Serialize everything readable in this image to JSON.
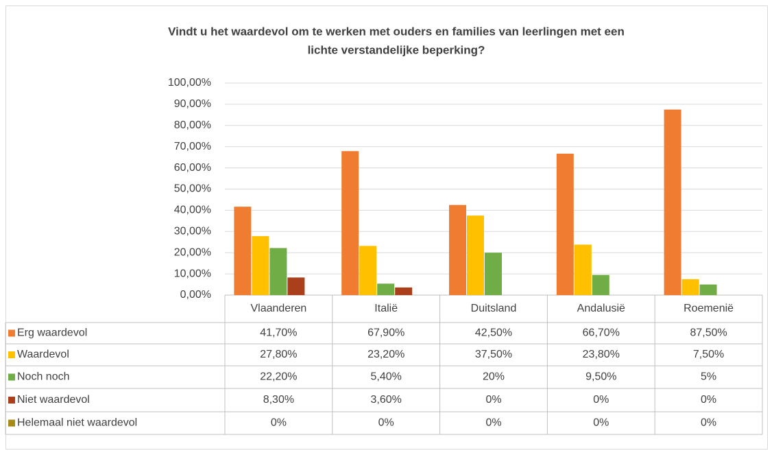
{
  "chart_data": {
    "type": "bar",
    "title": [
      "Vindt u het waardevol om te werken met ouders en families van leerlingen met een",
      "lichte verstandelijke beperking?"
    ],
    "categories": [
      "Vlaanderen",
      "Italië",
      "Duitsland",
      "Andalusië",
      "Roemenië"
    ],
    "series": [
      {
        "name": "Erg waardevol",
        "color": "#f07c32",
        "values": [
          41.7,
          67.9,
          42.5,
          66.7,
          87.5
        ],
        "value_labels": [
          "41,70%",
          "67,90%",
          "42,50%",
          "66,70%",
          "87,50%"
        ]
      },
      {
        "name": "Waardevol",
        "color": "#ffc000",
        "values": [
          27.8,
          23.2,
          37.5,
          23.8,
          7.5
        ],
        "value_labels": [
          "27,80%",
          "23,20%",
          "37,50%",
          "23,80%",
          "7,50%"
        ]
      },
      {
        "name": "Noch noch",
        "color": "#70ad47",
        "values": [
          22.2,
          5.4,
          20,
          9.5,
          5
        ],
        "value_labels": [
          "22,20%",
          "5,40%",
          "20%",
          "9,50%",
          "5%"
        ]
      },
      {
        "name": "Niet waardevol",
        "color": "#a9401b",
        "values": [
          8.3,
          3.6,
          0,
          0,
          0
        ],
        "value_labels": [
          "8,30%",
          "3,60%",
          "0%",
          "0%",
          "0%"
        ]
      },
      {
        "name": "Helemaal niet waardevol",
        "color": "#a88a1a",
        "values": [
          0,
          0,
          0,
          0,
          0
        ],
        "value_labels": [
          "0%",
          "0%",
          "0%",
          "0%",
          "0%"
        ]
      }
    ],
    "ylim": [
      0,
      100
    ],
    "yticks": [
      {
        "value": 0,
        "label": "0,00%"
      },
      {
        "value": 10,
        "label": "10,00%"
      },
      {
        "value": 20,
        "label": "20,00%"
      },
      {
        "value": 30,
        "label": "30,00%"
      },
      {
        "value": 40,
        "label": "40,00%"
      },
      {
        "value": 50,
        "label": "50,00%"
      },
      {
        "value": 60,
        "label": "60,00%"
      },
      {
        "value": 70,
        "label": "70,00%"
      },
      {
        "value": 80,
        "label": "80,00%"
      },
      {
        "value": 90,
        "label": "90,00%"
      },
      {
        "value": 100,
        "label": "100,00%"
      }
    ],
    "grid": true
  }
}
